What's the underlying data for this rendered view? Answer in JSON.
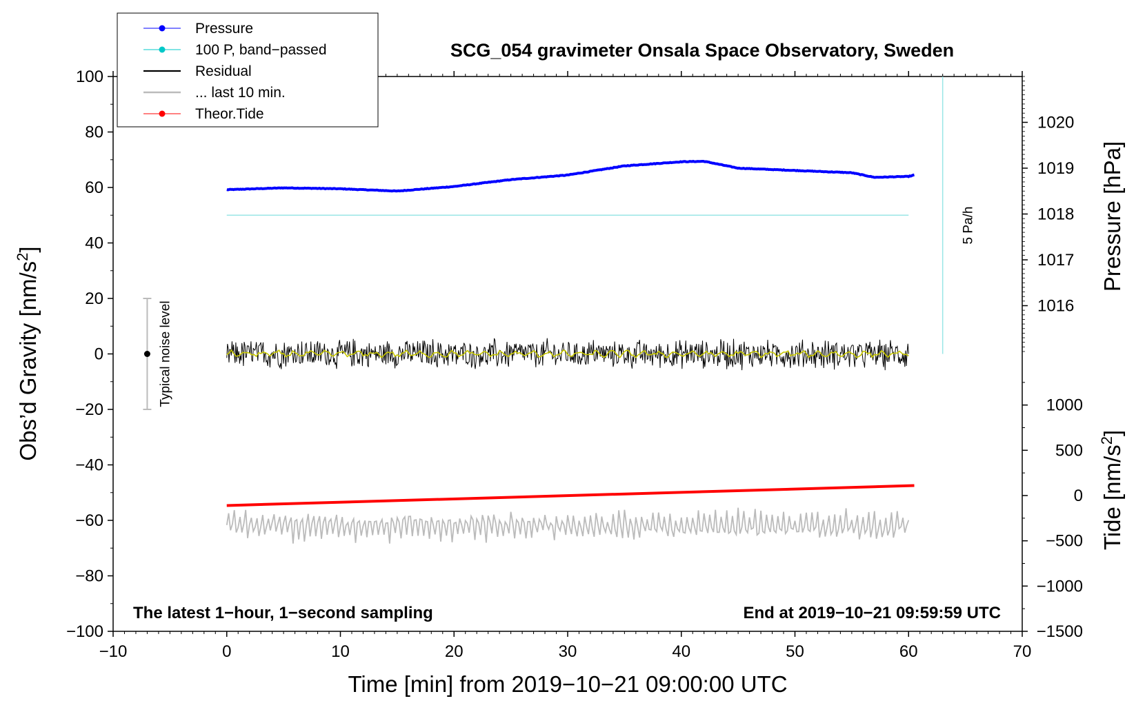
{
  "chart_data": {
    "type": "line",
    "title": "SCG_054 gravimeter Onsala Space Observatory, Sweden",
    "xlabel": "Time [min] from 2019−10−21 09:00:00 UTC",
    "ylabel_left_main": "Obs’d Gravity [nm/s",
    "ylabel_left_sup": "2",
    "ylabel_left_end": "]",
    "ylabel_right_pressure": "Pressure [hPa]",
    "ylabel_right_tide_main": "Tide [nm/s",
    "ylabel_right_tide_sup": "2",
    "ylabel_right_tide_end": "]",
    "xlim": [
      -10,
      70
    ],
    "ylim": [
      -100,
      100
    ],
    "pressure_lim": [
      1015.0,
      1021.0
    ],
    "tide_lim": [
      -1500,
      1500
    ],
    "x_ticks": [
      -10,
      0,
      10,
      20,
      30,
      40,
      50,
      60,
      70
    ],
    "x_tick_labels": [
      "−10",
      "0",
      "10",
      "20",
      "30",
      "40",
      "50",
      "60",
      "70"
    ],
    "y_ticks": [
      100,
      80,
      60,
      40,
      20,
      0,
      -20,
      -40,
      -60,
      -80,
      -100
    ],
    "y_tick_labels": [
      "100",
      "80",
      "60",
      "40",
      "20",
      "0",
      "−20",
      "−40",
      "−60",
      "−80",
      "−100"
    ],
    "pressure_ticks": [
      1016,
      1017,
      1018,
      1019,
      1020
    ],
    "pressure_tick_labels": [
      "1016",
      "1017",
      "1018",
      "1019",
      "1020"
    ],
    "tide_ticks": [
      1000,
      500,
      0,
      -500,
      -1000,
      -1500
    ],
    "tide_tick_labels": [
      "1000",
      "500",
      "0",
      "−500",
      "−1000",
      "−1500"
    ],
    "legend": [
      {
        "label": "Pressure",
        "color": "#0000ff",
        "marker": true
      },
      {
        "label": "100 P, band−passed",
        "color": "#00c8c8",
        "marker": true
      },
      {
        "label": "Residual",
        "color": "#000000",
        "marker": false
      },
      {
        "label": "... last 10 min.",
        "color": "#bbbbbb",
        "marker": false
      },
      {
        "label": "Theor.Tide",
        "color": "#ff0000",
        "marker": true
      }
    ],
    "series": [
      {
        "name": "Pressure",
        "axis": "pressure_hPa",
        "color": "#0000ff",
        "x": [
          0,
          5,
          10,
          15,
          20,
          25,
          30,
          35,
          40,
          42,
          45,
          50,
          55,
          57,
          60,
          60.5
        ],
        "values": [
          1018.53,
          1018.57,
          1018.55,
          1018.5,
          1018.6,
          1018.75,
          1018.85,
          1019.05,
          1019.14,
          1019.15,
          1019.0,
          1018.95,
          1018.9,
          1018.8,
          1018.82,
          1018.85
        ]
      },
      {
        "name": "100 P, band-passed",
        "axis": "gravity_nm_s2",
        "color": "#00c8c8",
        "x": [
          0,
          60
        ],
        "values": [
          50,
          50
        ]
      },
      {
        "name": "Residual",
        "axis": "gravity_nm_s2",
        "color": "#000000",
        "x_range": [
          0,
          60
        ],
        "mean": 0,
        "amplitude": 5
      },
      {
        "name": "... last 10 min.",
        "axis": "gravity_nm_s2",
        "color": "#bbbbbb",
        "x_range": [
          0,
          60
        ],
        "mean": -62,
        "amplitude": 5
      },
      {
        "name": "Theor.Tide",
        "axis": "tide_nm_s2",
        "color": "#ff0000",
        "x": [
          0,
          60.5
        ],
        "values": [
          -110,
          110
        ]
      }
    ],
    "scale_bar": {
      "label": "5 Pa/h",
      "x": 63,
      "y_from": 100,
      "y_to": 0,
      "color": "#99e6e6"
    },
    "noise_bar": {
      "label": "Typical noise level",
      "x": -7,
      "y_from": -20,
      "y_to": 20,
      "center": 0
    },
    "note_left": "The latest 1−hour, 1−second sampling",
    "note_right": "End at 2019−10−21 09:59:59 UTC"
  }
}
